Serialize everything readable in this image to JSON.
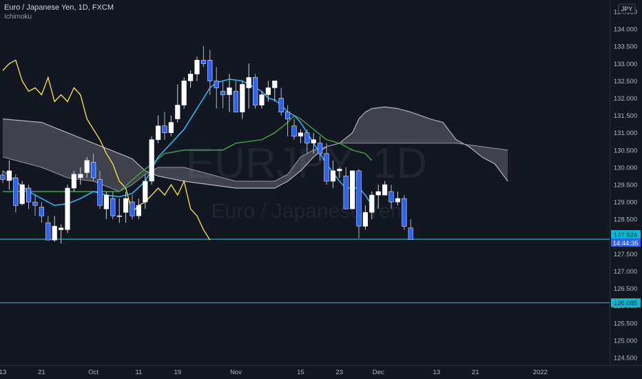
{
  "header": {
    "symbol_line": "Euro / Japanese Yen, 1D, FXCM",
    "indicator": "Ichimoku"
  },
  "watermark": {
    "symbol": "EURJPY, 1D",
    "description": "Euro / Japanese Yen"
  },
  "currency_badge": "JPY",
  "colors": {
    "background": "#131722",
    "candle_up": "#ffffff",
    "candle_down": "#2962ff",
    "conversion_line": "#29b6f6",
    "base_line": "#43a047",
    "lagging_span": "#ffeb3b",
    "cloud_fill": "#787b86",
    "cloud_edge": "#b2b5be",
    "horizontal_line": "#00bcd4",
    "price_badge": "#2962ff"
  },
  "price_labels": {
    "current": "127.924",
    "countdown": "14:44:35",
    "level": "126.085"
  },
  "chart_data": {
    "type": "candlestick",
    "y_range": [
      124.3,
      134.6
    ],
    "y_ticks": [
      "124.500",
      "125.000",
      "125.500",
      "126.000",
      "126.500",
      "127.000",
      "127.500",
      "128.000",
      "128.500",
      "129.000",
      "129.500",
      "130.000",
      "130.500",
      "131.000",
      "131.500",
      "132.000",
      "132.500",
      "133.000",
      "133.500",
      "134.000",
      "134.500"
    ],
    "x_ticks": [
      {
        "label": "13",
        "i": 0
      },
      {
        "label": "21",
        "i": 6
      },
      {
        "label": "Oct",
        "i": 14
      },
      {
        "label": "11",
        "i": 21
      },
      {
        "label": "19",
        "i": 27
      },
      {
        "label": "Nov",
        "i": 36
      },
      {
        "label": "15",
        "i": 46
      },
      {
        "label": "23",
        "i": 52
      },
      {
        "label": "Dec",
        "i": 58
      },
      {
        "label": "13",
        "i": 67
      },
      {
        "label": "21",
        "i": 73
      },
      {
        "label": "2022",
        "i": 83
      }
    ],
    "horizontal_lines": [
      127.924,
      126.085
    ],
    "candles": [
      [
        129.78,
        129.9,
        129.55,
        129.65
      ],
      [
        129.62,
        130.2,
        129.35,
        129.9
      ],
      [
        129.7,
        129.8,
        128.7,
        128.9
      ],
      [
        128.95,
        129.6,
        128.9,
        129.5
      ],
      [
        129.4,
        129.5,
        128.8,
        129.0
      ],
      [
        129.0,
        129.2,
        128.6,
        128.9
      ],
      [
        128.85,
        129.0,
        128.4,
        128.6
      ],
      [
        128.4,
        128.6,
        127.95,
        127.9
      ],
      [
        127.9,
        128.6,
        127.85,
        128.3
      ],
      [
        128.2,
        128.35,
        127.8,
        128.25
      ],
      [
        128.2,
        129.5,
        128.1,
        129.4
      ],
      [
        129.4,
        129.9,
        129.3,
        129.8
      ],
      [
        129.7,
        130.0,
        129.5,
        129.8
      ],
      [
        129.85,
        130.3,
        129.7,
        130.2
      ],
      [
        130.15,
        130.4,
        129.6,
        129.7
      ],
      [
        129.65,
        129.9,
        128.8,
        128.9
      ],
      [
        128.8,
        129.3,
        128.5,
        129.2
      ],
      [
        129.1,
        129.3,
        128.5,
        128.6
      ],
      [
        128.6,
        129.1,
        128.4,
        128.6
      ],
      [
        128.7,
        129.3,
        128.4,
        129.1
      ],
      [
        129.0,
        129.2,
        128.5,
        128.6
      ],
      [
        128.6,
        129.1,
        128.5,
        128.9
      ],
      [
        129.0,
        129.8,
        128.8,
        129.6
      ],
      [
        129.6,
        130.9,
        129.5,
        130.8
      ],
      [
        130.8,
        131.5,
        130.7,
        131.2
      ],
      [
        131.2,
        131.6,
        130.8,
        131.0
      ],
      [
        131.0,
        131.5,
        130.9,
        131.3
      ],
      [
        131.4,
        132.4,
        131.3,
        131.8
      ],
      [
        131.8,
        132.6,
        131.7,
        132.5
      ],
      [
        132.5,
        132.8,
        132.3,
        132.7
      ],
      [
        132.7,
        133.2,
        132.5,
        133.1
      ],
      [
        133.1,
        133.5,
        132.9,
        133.0
      ],
      [
        133.1,
        133.4,
        132.1,
        132.5
      ],
      [
        132.5,
        132.9,
        131.7,
        132.3
      ],
      [
        132.2,
        132.5,
        131.7,
        132.1
      ],
      [
        132.1,
        132.7,
        131.6,
        132.3
      ],
      [
        132.2,
        132.5,
        131.6,
        131.6
      ],
      [
        131.6,
        132.5,
        131.4,
        132.4
      ],
      [
        132.3,
        133.0,
        131.7,
        132.6
      ],
      [
        132.6,
        132.7,
        131.7,
        131.8
      ],
      [
        131.8,
        132.2,
        131.7,
        132.1
      ],
      [
        132.1,
        132.5,
        131.9,
        132.3
      ],
      [
        132.3,
        132.5,
        131.9,
        132.5
      ],
      [
        132.0,
        132.3,
        131.5,
        131.6
      ],
      [
        131.6,
        131.8,
        130.9,
        131.4
      ],
      [
        131.2,
        131.4,
        130.8,
        130.9
      ],
      [
        130.9,
        131.1,
        130.7,
        131.0
      ],
      [
        131.0,
        131.1,
        130.4,
        130.7
      ],
      [
        130.7,
        131.0,
        130.4,
        130.8
      ],
      [
        130.7,
        130.9,
        130.2,
        130.4
      ],
      [
        130.4,
        130.7,
        129.5,
        129.6
      ],
      [
        129.6,
        130.2,
        129.4,
        129.9
      ],
      [
        129.9,
        130.0,
        129.7,
        129.95
      ],
      [
        129.75,
        130.0,
        128.8,
        128.8
      ],
      [
        128.8,
        129.9,
        128.8,
        129.9
      ],
      [
        129.9,
        129.95,
        127.95,
        128.3
      ],
      [
        128.3,
        128.9,
        128.2,
        128.7
      ],
      [
        128.7,
        129.3,
        128.5,
        129.2
      ],
      [
        129.2,
        129.5,
        128.8,
        129.3
      ],
      [
        129.2,
        129.6,
        129.3,
        129.5
      ],
      [
        129.3,
        129.5,
        128.8,
        129.0
      ],
      [
        129.0,
        129.3,
        128.9,
        129.1
      ],
      [
        129.1,
        129.2,
        128.2,
        128.3
      ],
      [
        128.25,
        128.5,
        127.95,
        127.92
      ]
    ],
    "conversion_line": [
      [
        0,
        129.9
      ],
      [
        2,
        129.6
      ],
      [
        4,
        129.3
      ],
      [
        6,
        129.1
      ],
      [
        8,
        128.9
      ],
      [
        10,
        128.95
      ],
      [
        12,
        129.1
      ],
      [
        14,
        129.3
      ],
      [
        16,
        129.2
      ],
      [
        18,
        129.15
      ],
      [
        20,
        129.25
      ],
      [
        22,
        129.6
      ],
      [
        24,
        130.3
      ],
      [
        26,
        130.7
      ],
      [
        28,
        131.1
      ],
      [
        29,
        131.4
      ],
      [
        30,
        131.7
      ],
      [
        31,
        132.0
      ],
      [
        32,
        132.3
      ],
      [
        33,
        132.45
      ],
      [
        35,
        132.55
      ],
      [
        37,
        132.5
      ],
      [
        38,
        132.4
      ],
      [
        39,
        132.3
      ],
      [
        40,
        132.2
      ],
      [
        41,
        132.0
      ],
      [
        42,
        131.95
      ],
      [
        43,
        131.8
      ],
      [
        44,
        131.6
      ],
      [
        45,
        131.5
      ],
      [
        46,
        131.3
      ],
      [
        47,
        131.0
      ],
      [
        48,
        130.7
      ],
      [
        49,
        130.4
      ],
      [
        50,
        130.1
      ],
      [
        51,
        129.85
      ],
      [
        52,
        129.6
      ],
      [
        53,
        129.4
      ],
      [
        55,
        129.4
      ],
      [
        56,
        129.2
      ],
      [
        57,
        128.9
      ]
    ],
    "base_line": [
      [
        0,
        129.3
      ],
      [
        10,
        129.3
      ],
      [
        18,
        129.3
      ],
      [
        21,
        129.8
      ],
      [
        23,
        130.1
      ],
      [
        25,
        130.4
      ],
      [
        28,
        130.5
      ],
      [
        34,
        130.5
      ],
      [
        36,
        130.7
      ],
      [
        40,
        130.8
      ],
      [
        42,
        131.0
      ],
      [
        44,
        131.3
      ],
      [
        45,
        131.5
      ],
      [
        46,
        131.4
      ],
      [
        48,
        131.1
      ],
      [
        50,
        130.8
      ],
      [
        52,
        130.7
      ],
      [
        54,
        130.5
      ],
      [
        56,
        130.4
      ],
      [
        57,
        130.2
      ]
    ],
    "lagging_span": [
      [
        0,
        132.8
      ],
      [
        1,
        133.0
      ],
      [
        2,
        133.1
      ],
      [
        3,
        132.5
      ],
      [
        4,
        132.2
      ],
      [
        5,
        132.3
      ],
      [
        6,
        132.1
      ],
      [
        7,
        132.6
      ],
      [
        8,
        131.9
      ],
      [
        9,
        132.1
      ],
      [
        10,
        131.9
      ],
      [
        11,
        132.3
      ],
      [
        12,
        132.1
      ],
      [
        13,
        131.4
      ],
      [
        14,
        131.1
      ],
      [
        15,
        130.8
      ],
      [
        16,
        130.4
      ],
      [
        17,
        130.1
      ],
      [
        18,
        129.6
      ],
      [
        19,
        129.4
      ],
      [
        20,
        128.7
      ],
      [
        21,
        128.9
      ],
      [
        22,
        129.0
      ],
      [
        23,
        129.2
      ],
      [
        24,
        129.4
      ],
      [
        25,
        129.2
      ],
      [
        26,
        129.5
      ],
      [
        27,
        129.2
      ],
      [
        28,
        129.6
      ],
      [
        29,
        128.8
      ],
      [
        30,
        128.6
      ],
      [
        31,
        128.2
      ],
      [
        32,
        127.9
      ]
    ],
    "cloud_a": [
      [
        0,
        131.4
      ],
      [
        6,
        131.3
      ],
      [
        10,
        131.0
      ],
      [
        14,
        130.7
      ],
      [
        18,
        130.4
      ],
      [
        20,
        130.25
      ],
      [
        22,
        129.9
      ],
      [
        24,
        129.75
      ],
      [
        28,
        129.6
      ],
      [
        32,
        129.5
      ],
      [
        36,
        129.4
      ],
      [
        42,
        129.4
      ],
      [
        44,
        129.6
      ],
      [
        46,
        129.9
      ],
      [
        48,
        130.3
      ],
      [
        50,
        130.6
      ],
      [
        52,
        130.7
      ],
      [
        54,
        131.0
      ],
      [
        55,
        131.4
      ],
      [
        56,
        131.6
      ],
      [
        57,
        131.7
      ],
      [
        59,
        131.75
      ],
      [
        61,
        131.7
      ],
      [
        63,
        131.6
      ],
      [
        66,
        131.4
      ],
      [
        68,
        131.3
      ],
      [
        70,
        130.8
      ],
      [
        72,
        130.6
      ],
      [
        74,
        130.3
      ],
      [
        76,
        130.1
      ],
      [
        78,
        129.6
      ]
    ],
    "cloud_b": [
      [
        0,
        130.3
      ],
      [
        6,
        130.0
      ],
      [
        10,
        129.7
      ],
      [
        14,
        129.6
      ],
      [
        18,
        129.3
      ],
      [
        20,
        129.5
      ],
      [
        22,
        129.8
      ],
      [
        24,
        130.0
      ],
      [
        28,
        130.0
      ],
      [
        32,
        129.8
      ],
      [
        36,
        129.6
      ],
      [
        42,
        129.6
      ],
      [
        44,
        129.8
      ],
      [
        46,
        130.3
      ],
      [
        48,
        130.5
      ],
      [
        50,
        130.6
      ],
      [
        52,
        130.7
      ],
      [
        54,
        130.7
      ],
      [
        56,
        130.7
      ],
      [
        60,
        130.7
      ],
      [
        66,
        130.7
      ],
      [
        68,
        130.7
      ],
      [
        70,
        130.7
      ],
      [
        72,
        130.65
      ],
      [
        74,
        130.6
      ],
      [
        76,
        130.55
      ],
      [
        78,
        130.5
      ]
    ]
  }
}
